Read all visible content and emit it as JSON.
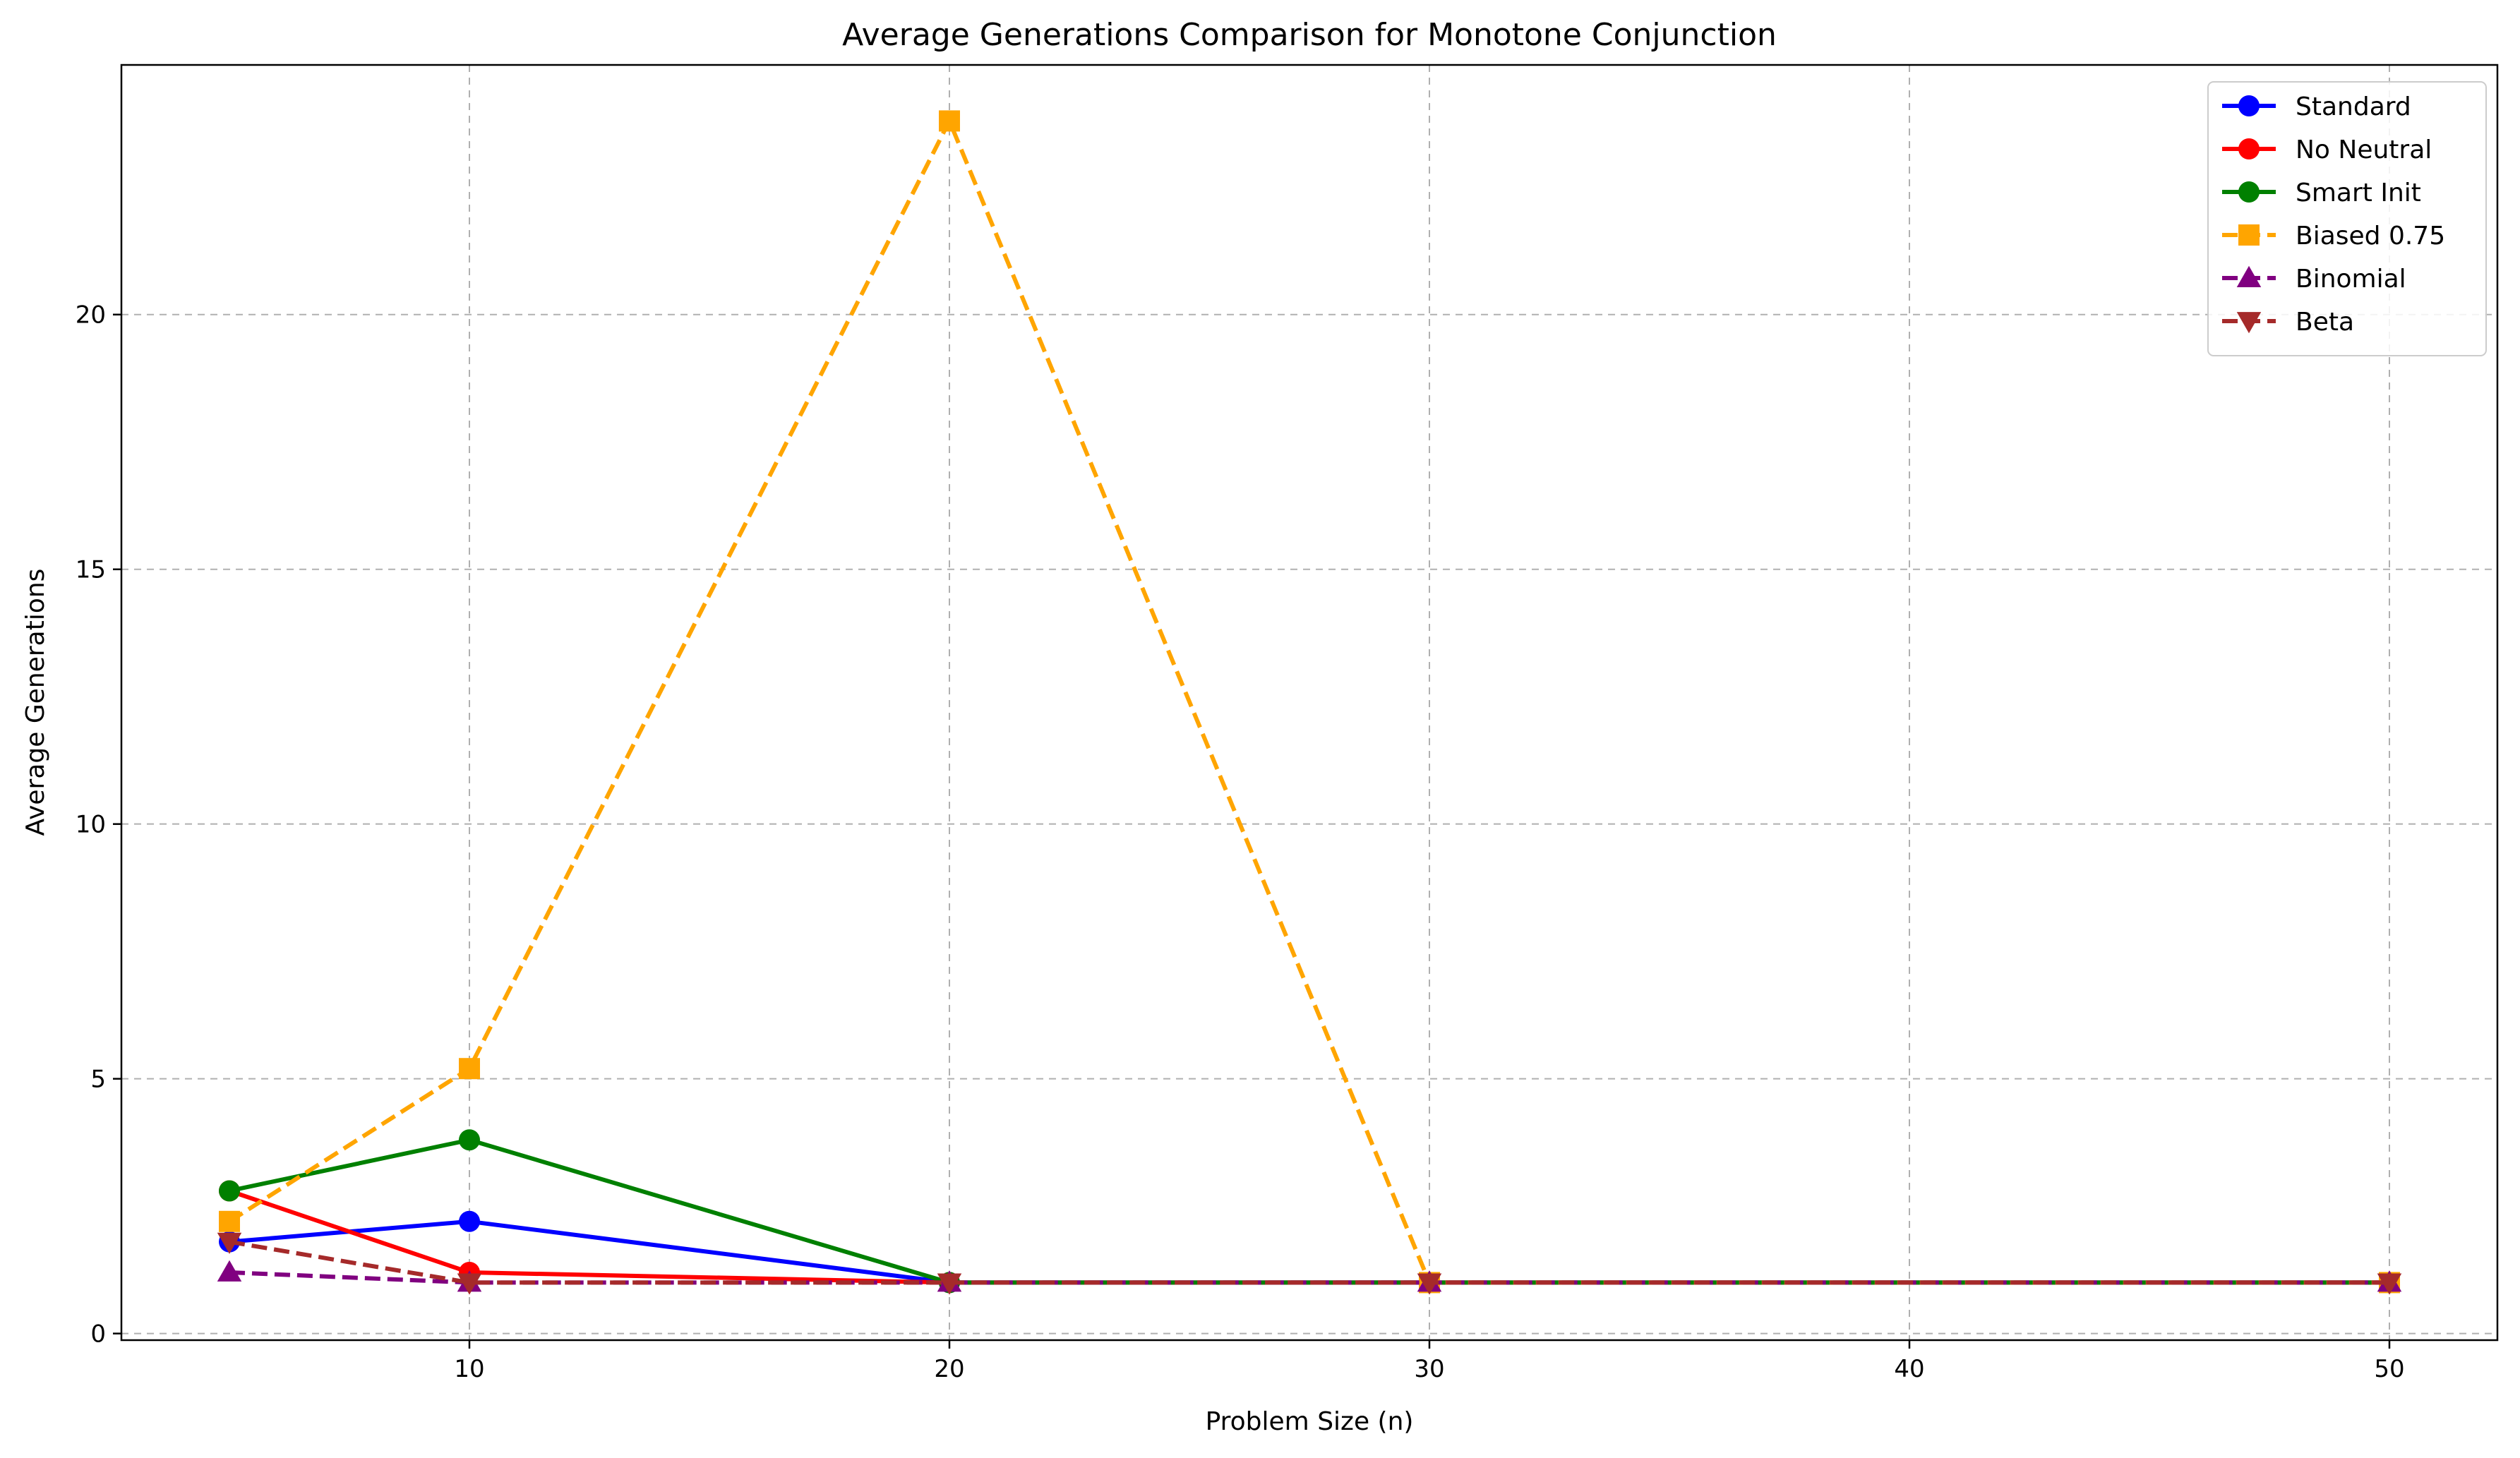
{
  "chart_data": {
    "type": "line",
    "title": "Average Generations Comparison for Monotone Conjunction",
    "xlabel": "Problem Size (n)",
    "ylabel": "Average Generations",
    "x": [
      5,
      10,
      20,
      30,
      50
    ],
    "xlim": [
      2.75,
      52.25
    ],
    "ylim": [
      -0.13,
      24.9
    ],
    "xticks": [
      10,
      20,
      30,
      40,
      50
    ],
    "yticks": [
      0,
      5,
      10,
      15,
      20
    ],
    "grid": true,
    "legend_position": "top-right",
    "series": [
      {
        "name": "Standard",
        "values": [
          1.8,
          2.2,
          1.0,
          1.0,
          1.0
        ],
        "color": "#0000ff",
        "dash": "solid",
        "marker": "circle"
      },
      {
        "name": "No Neutral",
        "values": [
          2.8,
          1.2,
          1.0,
          1.0,
          1.0
        ],
        "color": "#ff0000",
        "dash": "solid",
        "marker": "circle"
      },
      {
        "name": "Smart Init",
        "values": [
          2.8,
          3.8,
          1.0,
          1.0,
          1.0
        ],
        "color": "#008000",
        "dash": "solid",
        "marker": "circle"
      },
      {
        "name": "Biased 0.75",
        "values": [
          2.2,
          5.2,
          23.8,
          1.0,
          1.0
        ],
        "color": "#ffa500",
        "dash": "dashed",
        "marker": "square"
      },
      {
        "name": "Binomial",
        "values": [
          1.2,
          1.0,
          1.0,
          1.0,
          1.0
        ],
        "color": "#800080",
        "dash": "dashed",
        "marker": "triangle-up"
      },
      {
        "name": "Beta",
        "values": [
          1.8,
          1.0,
          1.0,
          1.0,
          1.0
        ],
        "color": "#a52a2a",
        "dash": "dashed",
        "marker": "triangle-down"
      }
    ]
  }
}
